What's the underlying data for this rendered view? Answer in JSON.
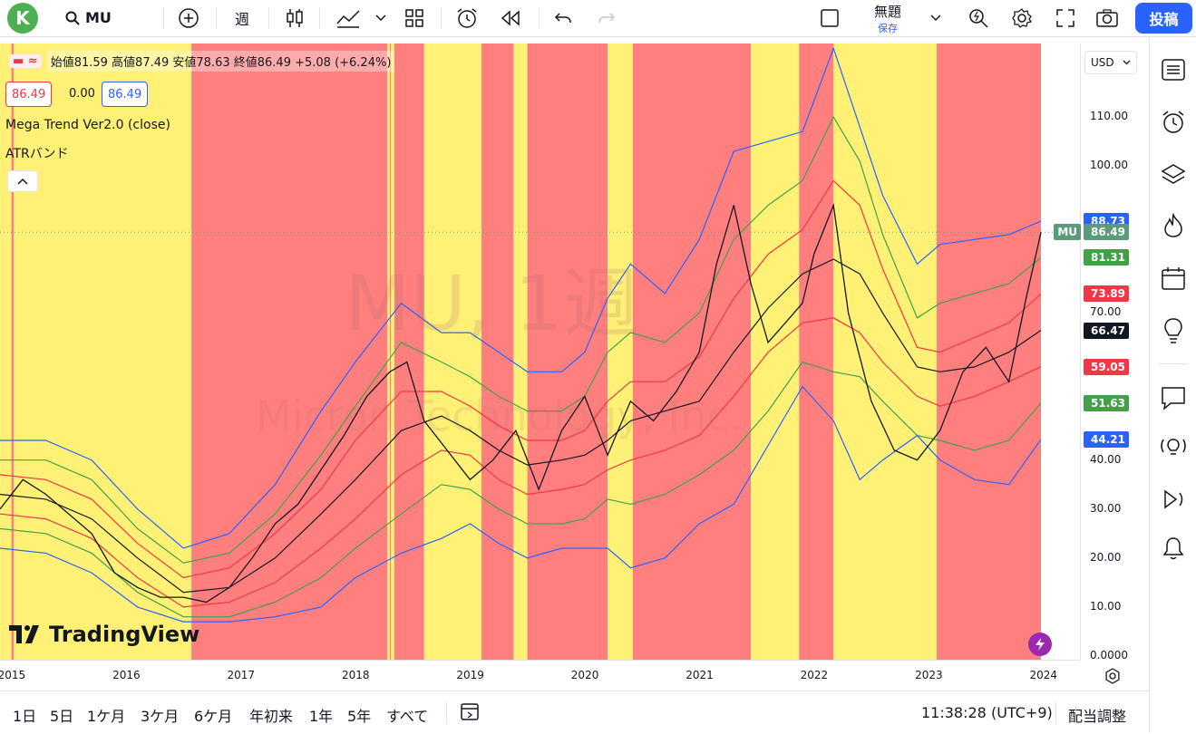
{
  "header": {
    "avatar_letter": "K",
    "symbol": "MU",
    "interval": "週",
    "layout_title": "無題",
    "save_label": "保存",
    "post_label": "投稿"
  },
  "legend": {
    "ohlc": "始値81.59 高値87.49 安値78.63 終値86.49 +5.08 (+6.24%)",
    "bid": "86.49",
    "spread": "0.00",
    "ask": "86.49",
    "indicator1": "Mega Trend Ver2.0 (close)",
    "indicator2": "ATRバンド"
  },
  "watermark": {
    "title": "MU, 1週",
    "subtitle": "Micron Technology, Inc."
  },
  "currency": "USD",
  "price_ticks": [
    "110.00",
    "100.00",
    "70.00",
    "40.00",
    "30.00",
    "20.00",
    "10.00",
    "0.0000"
  ],
  "price_tags": [
    {
      "label": "",
      "value": "88.73",
      "color": "#2962ff",
      "price": 88.73
    },
    {
      "label": "MU",
      "value": "86.49",
      "color": "#5b9a7b",
      "price": 86.49
    },
    {
      "label": "",
      "value": "81.31",
      "color": "#43a047",
      "price": 81.31
    },
    {
      "label": "",
      "value": "73.89",
      "color": "#f23645",
      "price": 73.89
    },
    {
      "label": "",
      "value": "66.47",
      "color": "#131722",
      "price": 66.47
    },
    {
      "label": "",
      "value": "59.05",
      "color": "#f23645",
      "price": 59.05
    },
    {
      "label": "",
      "value": "51.63",
      "color": "#43a047",
      "price": 51.63
    },
    {
      "label": "",
      "value": "44.21",
      "color": "#2962ff",
      "price": 44.21
    }
  ],
  "time_ticks": [
    "2015",
    "2016",
    "2017",
    "2018",
    "2019",
    "2020",
    "2021",
    "2022",
    "2023",
    "2024"
  ],
  "brand": "TradingView",
  "bottom": {
    "ranges": [
      "1日",
      "5日",
      "1ケ月",
      "3ケ月",
      "6ケ月",
      "年初来",
      "1年",
      "5年",
      "すべて"
    ],
    "clock": "11:38:28 (UTC+9)",
    "adjust": "配当調整"
  },
  "chart_data": {
    "type": "line",
    "ylim": [
      0,
      125
    ],
    "regions_color": {
      "red": "#ff7f7f",
      "yellow": "#fff176"
    },
    "regions": [
      [
        "yellow",
        2014.9,
        2015.0
      ],
      [
        "red",
        2015.0,
        2015.02
      ],
      [
        "yellow",
        2015.02,
        2016.57
      ],
      [
        "red",
        2016.57,
        2018.28
      ],
      [
        "yellow",
        2018.28,
        2018.3
      ],
      [
        "red",
        2018.3,
        2018.31
      ],
      [
        "yellow",
        2018.31,
        2018.34
      ],
      [
        "red",
        2018.34,
        2018.6
      ],
      [
        "yellow",
        2018.6,
        2019.1
      ],
      [
        "red",
        2019.1,
        2019.38
      ],
      [
        "yellow",
        2019.38,
        2019.5
      ],
      [
        "red",
        2019.5,
        2020.2
      ],
      [
        "yellow",
        2020.2,
        2020.42
      ],
      [
        "red",
        2020.42,
        2021.45
      ],
      [
        "yellow",
        2021.45,
        2021.87
      ],
      [
        "red",
        2021.87,
        2022.17
      ],
      [
        "yellow",
        2022.17,
        2023.07
      ],
      [
        "red",
        2023.07,
        2023.98
      ]
    ],
    "series": [
      {
        "color": "#2962ff",
        "x": [
          2014.9,
          2015.3,
          2015.7,
          2016.1,
          2016.5,
          2016.9,
          2017.3,
          2017.7,
          2018.0,
          2018.4,
          2018.75,
          2019.0,
          2019.25,
          2019.5,
          2019.8,
          2020.0,
          2020.2,
          2020.4,
          2020.7,
          2021.0,
          2021.3,
          2021.6,
          2021.9,
          2022.17,
          2022.4,
          2022.6,
          2022.9,
          2023.1,
          2023.4,
          2023.7,
          2023.98
        ],
        "y": [
          44,
          44,
          40,
          30,
          22,
          25,
          35,
          50,
          60,
          72,
          66,
          66,
          62,
          58,
          58,
          62,
          73,
          80,
          74,
          85,
          103,
          105,
          107,
          124,
          108,
          94,
          80,
          84,
          85,
          86,
          88.73
        ]
      },
      {
        "color": "#43a047",
        "x": [
          2014.9,
          2015.3,
          2015.7,
          2016.1,
          2016.5,
          2016.9,
          2017.3,
          2017.7,
          2018.0,
          2018.4,
          2018.75,
          2019.0,
          2019.25,
          2019.5,
          2019.8,
          2020.0,
          2020.2,
          2020.4,
          2020.7,
          2021.0,
          2021.3,
          2021.6,
          2021.9,
          2022.17,
          2022.4,
          2022.6,
          2022.9,
          2023.1,
          2023.4,
          2023.7,
          2023.98
        ],
        "y": [
          40,
          40,
          36,
          26,
          19,
          21,
          29,
          41,
          51,
          64,
          60,
          57,
          53,
          50,
          50,
          53,
          62,
          66,
          64,
          70,
          85,
          92,
          97,
          110,
          101,
          86,
          69,
          72,
          74,
          76,
          81.31
        ]
      },
      {
        "color": "#f23645",
        "x": [
          2014.9,
          2015.3,
          2015.7,
          2016.1,
          2016.5,
          2016.9,
          2017.3,
          2017.7,
          2018.0,
          2018.4,
          2018.75,
          2019.0,
          2019.25,
          2019.5,
          2019.8,
          2020.0,
          2020.2,
          2020.4,
          2020.7,
          2021.0,
          2021.3,
          2021.6,
          2021.9,
          2022.17,
          2022.4,
          2022.6,
          2022.9,
          2023.1,
          2023.4,
          2023.7,
          2023.98
        ],
        "y": [
          37,
          36,
          32,
          23,
          16,
          18,
          25,
          34,
          44,
          54,
          54,
          51,
          47,
          44,
          44,
          46,
          52,
          56,
          56,
          61,
          73,
          82,
          87,
          97,
          92,
          79,
          63,
          62,
          65,
          68,
          73.89
        ]
      },
      {
        "color": "#131722",
        "x": [
          2014.9,
          2015.3,
          2015.7,
          2016.1,
          2016.5,
          2016.9,
          2017.3,
          2017.7,
          2018.0,
          2018.4,
          2018.75,
          2019.0,
          2019.25,
          2019.5,
          2019.8,
          2020.0,
          2020.2,
          2020.4,
          2020.7,
          2021.0,
          2021.3,
          2021.6,
          2021.9,
          2022.17,
          2022.4,
          2022.6,
          2022.9,
          2023.1,
          2023.4,
          2023.7,
          2023.98
        ],
        "y": [
          33,
          32,
          28,
          20,
          13,
          14,
          20,
          29,
          36,
          46,
          49,
          46,
          42,
          39,
          40,
          41,
          44,
          48,
          50,
          52,
          62,
          71,
          78,
          81,
          78,
          70,
          59,
          58,
          59,
          62,
          66.47
        ]
      },
      {
        "color": "#f23645",
        "x": [
          2014.9,
          2015.3,
          2015.7,
          2016.1,
          2016.5,
          2016.9,
          2017.3,
          2017.7,
          2018.0,
          2018.4,
          2018.75,
          2019.0,
          2019.25,
          2019.5,
          2019.8,
          2020.0,
          2020.2,
          2020.4,
          2020.7,
          2021.0,
          2021.3,
          2021.6,
          2021.9,
          2022.17,
          2022.4,
          2022.6,
          2022.9,
          2023.1,
          2023.4,
          2023.7,
          2023.98
        ],
        "y": [
          29,
          28,
          24,
          16,
          10,
          11,
          15,
          22,
          28,
          37,
          42,
          41,
          36,
          33,
          34,
          35,
          38,
          40,
          42,
          45,
          53,
          62,
          68,
          69,
          66,
          60,
          53,
          51,
          53,
          56,
          59.05
        ]
      },
      {
        "color": "#43a047",
        "x": [
          2014.9,
          2015.3,
          2015.7,
          2016.1,
          2016.5,
          2016.9,
          2017.3,
          2017.7,
          2018.0,
          2018.4,
          2018.75,
          2019.0,
          2019.25,
          2019.5,
          2019.8,
          2020.0,
          2020.2,
          2020.4,
          2020.7,
          2021.0,
          2021.3,
          2021.6,
          2021.9,
          2022.17,
          2022.4,
          2022.6,
          2022.9,
          2023.1,
          2023.4,
          2023.7,
          2023.98
        ],
        "y": [
          26,
          25,
          21,
          13,
          8,
          8,
          11,
          16,
          22,
          29,
          35,
          34,
          30,
          27,
          27,
          28,
          32,
          31,
          33,
          37,
          42,
          50,
          60,
          58,
          57,
          52,
          45,
          44,
          42,
          44,
          51.63
        ]
      },
      {
        "color": "#2962ff",
        "x": [
          2014.9,
          2015.3,
          2015.7,
          2016.1,
          2016.5,
          2016.9,
          2017.3,
          2017.7,
          2018.0,
          2018.4,
          2018.75,
          2019.0,
          2019.25,
          2019.5,
          2019.8,
          2020.0,
          2020.2,
          2020.4,
          2020.7,
          2021.0,
          2021.3,
          2021.6,
          2021.9,
          2022.17,
          2022.4,
          2022.6,
          2022.9,
          2023.1,
          2023.4,
          2023.7,
          2023.98
        ],
        "y": [
          22,
          21,
          17,
          10,
          7,
          7,
          8,
          10,
          16,
          21,
          24,
          27,
          23,
          20,
          22,
          22,
          22,
          18,
          20,
          27,
          31,
          43,
          55,
          48,
          36,
          40,
          45,
          40,
          36,
          35,
          44.21
        ]
      },
      {
        "color": "#131722",
        "x": [
          2014.9,
          2015.1,
          2015.3,
          2015.5,
          2015.7,
          2015.9,
          2016.1,
          2016.3,
          2016.5,
          2016.7,
          2016.9,
          2017.1,
          2017.3,
          2017.5,
          2017.7,
          2017.9,
          2018.1,
          2018.3,
          2018.45,
          2018.6,
          2018.8,
          2019.0,
          2019.2,
          2019.4,
          2019.6,
          2019.8,
          2020.0,
          2020.2,
          2020.4,
          2020.6,
          2020.8,
          2021.0,
          2021.15,
          2021.3,
          2021.45,
          2021.6,
          2021.75,
          2021.9,
          2022.0,
          2022.17,
          2022.3,
          2022.5,
          2022.7,
          2022.9,
          2023.1,
          2023.3,
          2023.5,
          2023.7,
          2023.85,
          2023.98
        ],
        "y": [
          30,
          36,
          33,
          29,
          25,
          17,
          14,
          12,
          12,
          11,
          14,
          20,
          27,
          31,
          38,
          45,
          53,
          58,
          60,
          48,
          42,
          36,
          40,
          46,
          34,
          46,
          53,
          41,
          52,
          48,
          54,
          62,
          80,
          92,
          76,
          64,
          68,
          72,
          82,
          92,
          70,
          52,
          42,
          40,
          46,
          58,
          63,
          56,
          73,
          86.49
        ]
      }
    ]
  }
}
